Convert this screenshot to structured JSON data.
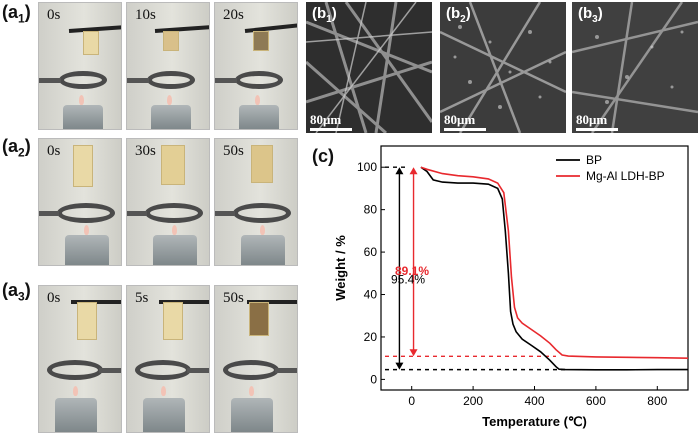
{
  "panels": {
    "a1": {
      "label_main": "(a",
      "label_sub": "1",
      "label_end": ")",
      "times": [
        "0s",
        "10s",
        "20s"
      ]
    },
    "a2": {
      "label_main": "(a",
      "label_sub": "2",
      "label_end": ")",
      "times": [
        "0s",
        "30s",
        "50s"
      ]
    },
    "a3": {
      "label_main": "(a",
      "label_sub": "3",
      "label_end": ")",
      "times": [
        "0s",
        "5s",
        "50s"
      ]
    },
    "b1": {
      "label_main": "(b",
      "label_sub": "1",
      "label_end": ")",
      "scale": "80μm"
    },
    "b2": {
      "label_main": "(b",
      "label_sub": "2",
      "label_end": ")",
      "scale": "80μm"
    },
    "b3": {
      "label_main": "(b",
      "label_sub": "3",
      "label_end": ")",
      "scale": "80μm"
    },
    "c": {
      "label": "(c)"
    }
  },
  "chart_data": {
    "type": "line",
    "xlabel": "Temperature (℃)",
    "ylabel": "Weight / %",
    "xlim": [
      -100,
      900
    ],
    "ylim": [
      -5,
      110
    ],
    "xticks": [
      0,
      200,
      400,
      600,
      800
    ],
    "yticks": [
      0,
      20,
      40,
      60,
      80,
      100
    ],
    "legend_position": "top-right",
    "series": [
      {
        "name": "BP",
        "color": "#000000",
        "x": [
          30,
          50,
          70,
          100,
          150,
          200,
          250,
          280,
          295,
          305,
          315,
          322,
          330,
          340,
          360,
          390,
          420,
          450,
          470,
          480,
          500,
          600,
          700,
          800,
          900
        ],
        "y": [
          100,
          98,
          94,
          93,
          92.5,
          92.5,
          92,
          90,
          85,
          70,
          50,
          32,
          26,
          22.5,
          19,
          16,
          13,
          9,
          6,
          4.8,
          4.6,
          4.5,
          4.5,
          4.6,
          4.6
        ]
      },
      {
        "name": "Mg-Al LDH-BP",
        "color": "#e8292e",
        "x": [
          30,
          50,
          100,
          150,
          200,
          250,
          280,
          300,
          315,
          325,
          335,
          345,
          360,
          390,
          420,
          450,
          470,
          490,
          510,
          600,
          700,
          800,
          900
        ],
        "y": [
          100,
          99,
          97,
          96,
          95.5,
          94.5,
          92.5,
          88,
          70,
          48,
          34,
          29,
          26.5,
          23.5,
          20.5,
          17,
          14,
          11.5,
          11,
          10.6,
          10.4,
          10.2,
          10
        ]
      }
    ],
    "annotations": [
      {
        "text": "89.1%",
        "color": "#e8292e",
        "x": 1,
        "y": 51
      },
      {
        "text": "95.4%",
        "color": "#000000",
        "x": -12,
        "y": 47
      }
    ],
    "reference_lines": [
      {
        "y": 100,
        "color": "#000000"
      },
      {
        "y": 10.9,
        "color": "#e8292e"
      },
      {
        "y": 4.6,
        "color": "#000000"
      }
    ],
    "arrows": [
      {
        "x": 6,
        "y_from": 10.9,
        "y_to": 100,
        "color": "#e8292e"
      },
      {
        "x": -40,
        "y_from": 4.6,
        "y_to": 100,
        "color": "#000000"
      }
    ]
  }
}
